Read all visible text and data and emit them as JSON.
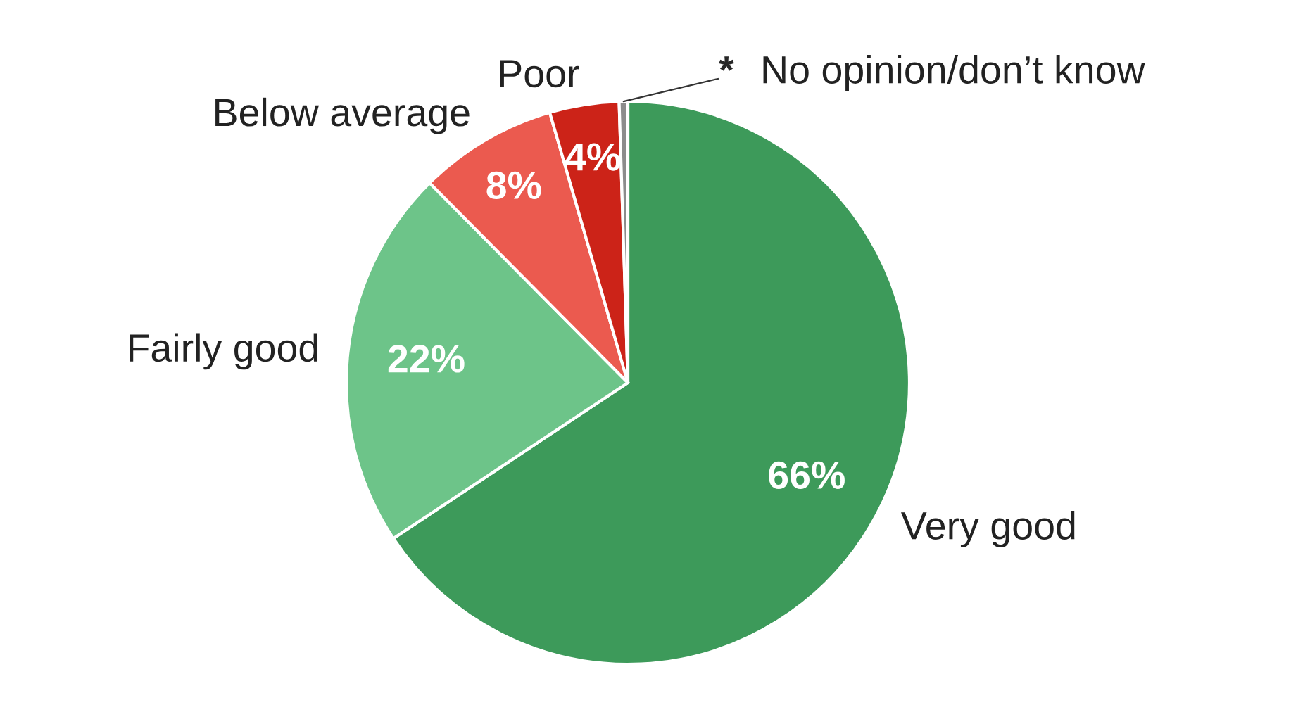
{
  "chart_data": {
    "type": "pie",
    "categories": [
      "Very good",
      "Fairly good",
      "Below average",
      "Poor",
      "No opinion/don’t know"
    ],
    "values": [
      66,
      22,
      8,
      4,
      0.5
    ],
    "colors": [
      "#3d9a5a",
      "#6dc489",
      "#eb5a4f",
      "#cc2318",
      "#8c8c8c"
    ],
    "value_labels": [
      "66%",
      "22%",
      "8%",
      "4%",
      "*"
    ],
    "legend": false
  }
}
